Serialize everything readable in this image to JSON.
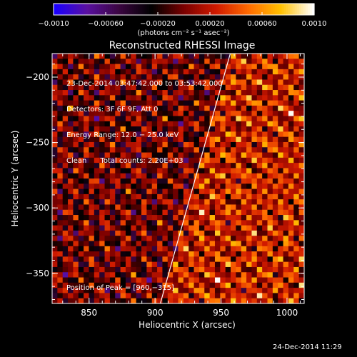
{
  "colors": {
    "background": "#000000",
    "foreground": "#ffffff",
    "colormap": [
      "#1a00ff",
      "#5a10a0",
      "#3a0540",
      "#000000",
      "#7a0000",
      "#d01a00",
      "#ff6a00",
      "#ffc000",
      "#ffffff"
    ]
  },
  "timestamp": "24-Dec-2014 11:29",
  "colorbar": {
    "ticks": [
      "−0.0010",
      "−0.00060",
      "−0.00020",
      "0.00020",
      "0.00060",
      "0.0010"
    ],
    "units": "(photons cm⁻² s⁻¹ asec⁻²)",
    "range": [
      -0.001,
      0.001
    ]
  },
  "overlay": {
    "lines": [
      "23-Dec-2014 03:47:42.000 to 03:53:42.000",
      "Detectors: 3F 6F 9F, Att 0",
      "Energy Range: 12.0 − 25.0 keV",
      "Clean      Total counts: 2.20E+03"
    ],
    "peak": "Position of Peak = [960,−315]"
  },
  "chart_data": {
    "type": "heatmap",
    "title": "Reconstructed RHESSI Image",
    "xlabel": "Heliocentric X (arcsec)",
    "ylabel": "Heliocentric Y (arcsec)",
    "xlim": [
      822,
      1013
    ],
    "ylim": [
      -373,
      -182
    ],
    "x_ticks": [
      "850",
      "900",
      "950",
      "1000"
    ],
    "y_ticks": [
      "−200",
      "−250",
      "−300",
      "−350"
    ],
    "x_tick_values": [
      850,
      900,
      950,
      1000
    ],
    "y_tick_values": [
      -200,
      -250,
      -300,
      -350
    ],
    "limb_line": [
      [
        904,
        -373
      ],
      [
        957,
        -182
      ]
    ],
    "peak_position": [
      960,
      -315
    ]
  }
}
